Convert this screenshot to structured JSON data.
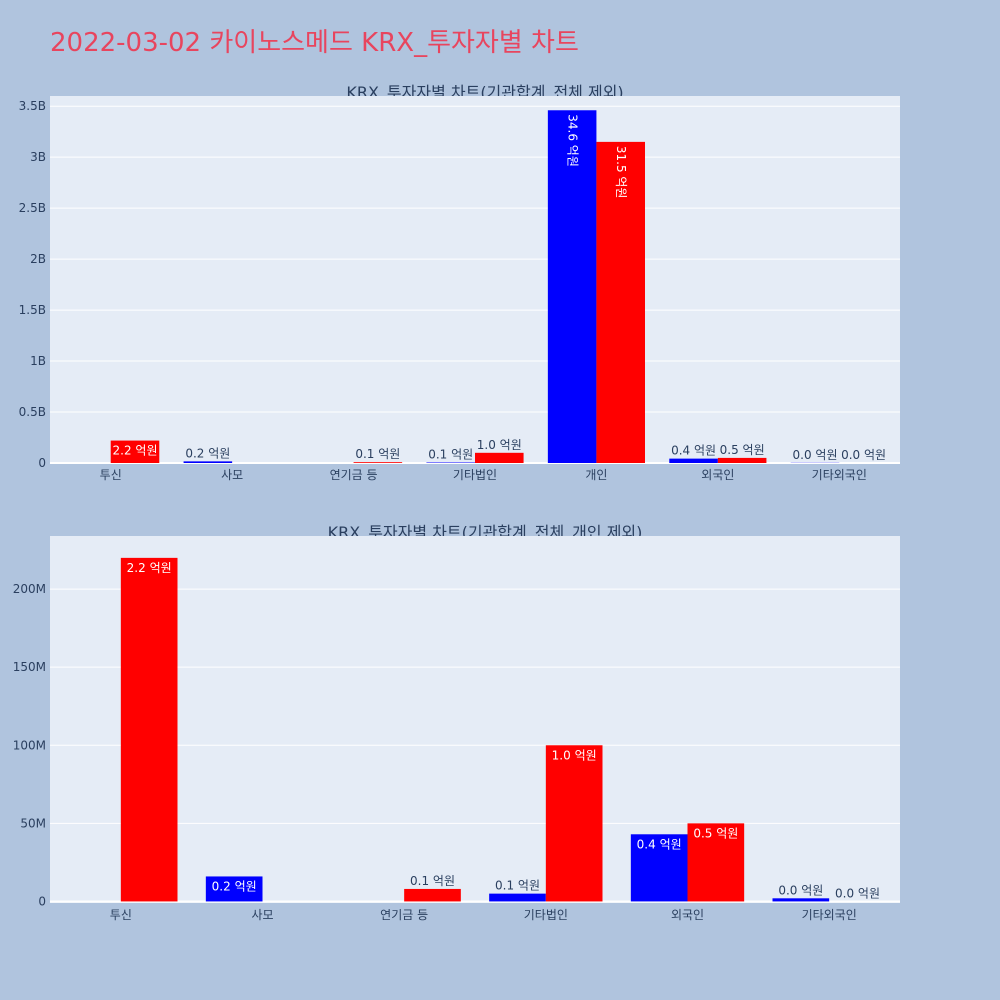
{
  "page": {
    "title": "2022-03-02 카이노스메드 KRX_투자자별 차트"
  },
  "colors": {
    "background": "#b0c4de",
    "plot_bg": "#e5ecf6",
    "title": "#e8455e",
    "series_a": "#0000ff",
    "series_b": "#ff0000",
    "text": "#2a3f5f"
  },
  "chart_data": [
    {
      "type": "bar",
      "title": "KRX_투자자별 차트(기관합계_전체 제외)",
      "categories": [
        "투신",
        "사모",
        "연기금 등",
        "기타법인",
        "개인",
        "외국인",
        "기타외국인"
      ],
      "ylim": [
        0,
        3600000000
      ],
      "yticks": [
        0,
        500000000,
        1000000000,
        1500000000,
        2000000000,
        2500000000,
        3000000000,
        3500000000
      ],
      "yticklabels": [
        "0",
        "0.5B",
        "1B",
        "1.5B",
        "2B",
        "2.5B",
        "3B",
        "3.5B"
      ],
      "grid": true,
      "series": [
        {
          "color": "#0000ff",
          "values": [
            null,
            16000000,
            0,
            5000000,
            3460000000,
            43000000,
            2000000
          ],
          "labels": [
            "",
            "0.2 억원",
            "",
            "0.1 억원",
            "34.6 억원",
            "0.4 억원",
            "0.0 억원"
          ]
        },
        {
          "color": "#ff0000",
          "values": [
            220000000,
            null,
            8000000,
            100000000,
            3150000000,
            50000000,
            0
          ],
          "labels": [
            "2.2 억원",
            "",
            "0.1 억원",
            "1.0 억원",
            "31.5 억원",
            "0.5 억원",
            "0.0 억원"
          ]
        }
      ]
    },
    {
      "type": "bar",
      "title": "KRX_투자자별 차트(기관합계_전체_개인 제외)",
      "categories": [
        "투신",
        "사모",
        "연기금 등",
        "기타법인",
        "외국인",
        "기타외국인"
      ],
      "ylim": [
        -1000000,
        234000000
      ],
      "yticks": [
        0,
        50000000,
        100000000,
        150000000,
        200000000
      ],
      "yticklabels": [
        "0",
        "50M",
        "100M",
        "150M",
        "200M"
      ],
      "grid": true,
      "series": [
        {
          "color": "#0000ff",
          "values": [
            null,
            16000000,
            0,
            5000000,
            43000000,
            2000000
          ],
          "labels": [
            "",
            "0.2 억원",
            "",
            "0.1 억원",
            "0.4 억원",
            "0.0 억원"
          ]
        },
        {
          "color": "#ff0000",
          "values": [
            220000000,
            null,
            8000000,
            100000000,
            50000000,
            0
          ],
          "labels": [
            "2.2 억원",
            "",
            "0.1 억원",
            "1.0 억원",
            "0.5 억원",
            "0.0 억원"
          ]
        }
      ]
    }
  ]
}
